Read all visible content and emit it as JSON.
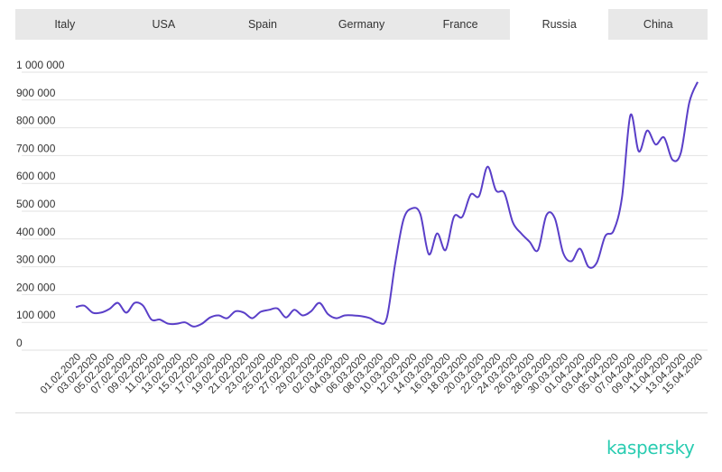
{
  "tabs": [
    {
      "label": "Italy",
      "active": false
    },
    {
      "label": "USA",
      "active": false
    },
    {
      "label": "Spain",
      "active": false
    },
    {
      "label": "Germany",
      "active": false
    },
    {
      "label": "France",
      "active": false
    },
    {
      "label": "Russia",
      "active": true
    },
    {
      "label": "China",
      "active": false
    }
  ],
  "brand": {
    "logo_text": "kaspersky",
    "color": "#29ccb1"
  },
  "colors": {
    "line": "#5a3fc8",
    "grid": "#e2e2e2",
    "tab_bar": "#e8e8e8"
  },
  "chart_data": {
    "type": "line",
    "title": "",
    "xlabel": "",
    "ylabel": "",
    "ylim": [
      0,
      1000000
    ],
    "grid": true,
    "yticks": [
      {
        "value": 0,
        "label": "0"
      },
      {
        "value": 100000,
        "label": "100 000"
      },
      {
        "value": 200000,
        "label": "200 000"
      },
      {
        "value": 300000,
        "label": "300 000"
      },
      {
        "value": 400000,
        "label": "400 000"
      },
      {
        "value": 500000,
        "label": "500 000"
      },
      {
        "value": 600000,
        "label": "600 000"
      },
      {
        "value": 700000,
        "label": "700 000"
      },
      {
        "value": 800000,
        "label": "800 000"
      },
      {
        "value": 900000,
        "label": "900 000"
      },
      {
        "value": 1000000,
        "label": "1 000 000"
      }
    ],
    "xtick_labels": [
      "01.02.2020",
      "03.02.2020",
      "05.02.2020",
      "07.02.2020",
      "09.02.2020",
      "11.02.2020",
      "13.02.2020",
      "15.02.2020",
      "17.02.2020",
      "19.02.2020",
      "21.02.2020",
      "23.02.2020",
      "25.02.2020",
      "27.02.2020",
      "29.02.2020",
      "02.03.2020",
      "04.03.2020",
      "06.03.2020",
      "08.03.2020",
      "10.03.2020",
      "12.03.2020",
      "14.03.2020",
      "16.03.2020",
      "18.03.2020",
      "20.03.2020",
      "22.03.2020",
      "24.03.2020",
      "26.03.2020",
      "28.03.2020",
      "30.03.2020",
      "01.04.2020",
      "03.04.2020",
      "05.04.2020",
      "07.04.2020",
      "09.04.2020",
      "11.04.2020",
      "13.04.2020",
      "15.04.2020"
    ],
    "series": [
      {
        "values": [
          155000,
          160000,
          135000,
          135000,
          148000,
          170000,
          135000,
          170000,
          160000,
          110000,
          110000,
          95000,
          95000,
          100000,
          85000,
          95000,
          118000,
          125000,
          115000,
          140000,
          135000,
          115000,
          138000,
          145000,
          150000,
          118000,
          145000,
          125000,
          140000,
          170000,
          130000,
          115000,
          125000,
          125000,
          122000,
          115000,
          100000,
          115000,
          310000,
          470000,
          510000,
          490000,
          345000,
          420000,
          360000,
          480000,
          480000,
          560000,
          555000,
          660000,
          575000,
          565000,
          460000,
          420000,
          390000,
          360000,
          485000,
          475000,
          350000,
          320000,
          365000,
          300000,
          315000,
          410000,
          430000,
          550000,
          845000,
          715000,
          790000,
          740000,
          765000,
          685000,
          710000,
          890000,
          965000
        ]
      }
    ]
  }
}
